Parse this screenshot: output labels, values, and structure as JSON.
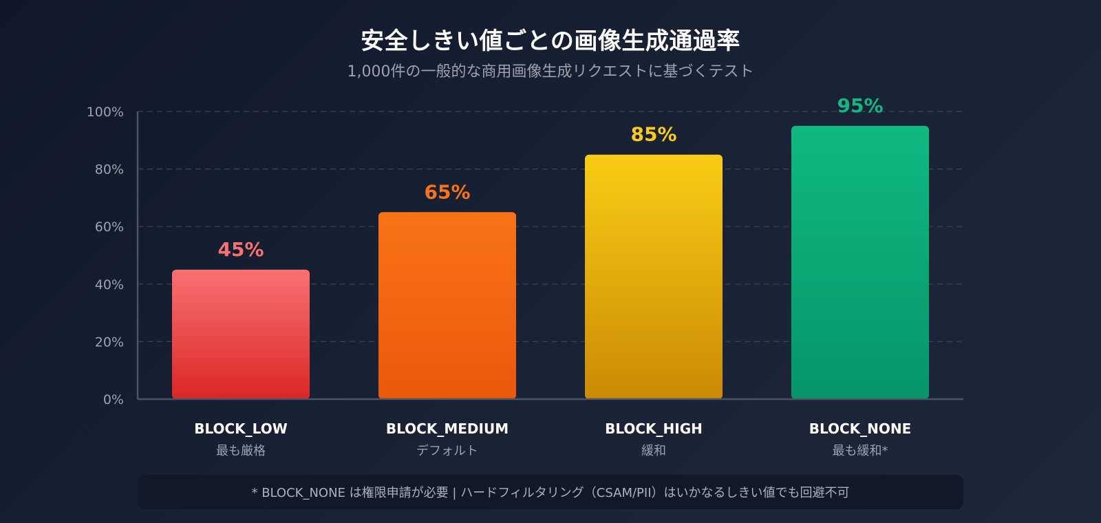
{
  "title": "安全しきい値ごとの画像生成通過率",
  "subtitle": "1,000件の一般的な商用画像生成リクエストに基づくテスト",
  "footnote": "* BLOCK_NONE は権限申請が必要 | ハードフィルタリング（CSAM/PII）はいかなるしきい値でも回避不可",
  "colors": {
    "grid": "#3b4456",
    "axis": "#4b5563",
    "tick_text": "#9ca3af",
    "category_text": "#ffffff",
    "sublabel_text": "#9ca3af"
  },
  "chart_data": {
    "type": "bar",
    "title": "安全しきい値ごとの画像生成通過率",
    "subtitle": "1,000件の一般的な商用画像生成リクエストに基づくテスト",
    "xlabel": "",
    "ylabel": "",
    "ylim": [
      0,
      100
    ],
    "grid": true,
    "yticks": [
      {
        "value": 0,
        "label": "0%"
      },
      {
        "value": 20,
        "label": "20%"
      },
      {
        "value": 40,
        "label": "40%"
      },
      {
        "value": 60,
        "label": "60%"
      },
      {
        "value": 80,
        "label": "80%"
      },
      {
        "value": 100,
        "label": "100%"
      }
    ],
    "categories": [
      "BLOCK_LOW",
      "BLOCK_MEDIUM",
      "BLOCK_HIGH",
      "BLOCK_NONE"
    ],
    "sublabels": [
      "最も厳格",
      "デフォルト",
      "緩和",
      "最も緩和*"
    ],
    "values": [
      45,
      65,
      85,
      95
    ],
    "value_labels": [
      "45%",
      "65%",
      "85%",
      "95%"
    ],
    "bar_colors": [
      {
        "top": "#f87171",
        "bottom": "#dc2626",
        "label": "#f87171"
      },
      {
        "top": "#f97316",
        "bottom": "#ea580c",
        "label": "#f97316"
      },
      {
        "top": "#facc15",
        "bottom": "#ca8a04",
        "label": "#facc15"
      },
      {
        "top": "#10b981",
        "bottom": "#059669",
        "label": "#10b981"
      }
    ]
  }
}
